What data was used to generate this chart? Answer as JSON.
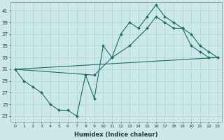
{
  "xlabel": "Humidex (Indice chaleur)",
  "background_color": "#cce8e8",
  "line_color": "#1a6b6b",
  "grid_color": "#aad0d0",
  "xlim": [
    -0.5,
    23.5
  ],
  "ylim": [
    22,
    42.5
  ],
  "xticks": [
    0,
    1,
    2,
    3,
    4,
    5,
    6,
    7,
    8,
    9,
    10,
    11,
    12,
    13,
    14,
    15,
    16,
    17,
    18,
    19,
    20,
    21,
    22,
    23
  ],
  "yticks": [
    23,
    25,
    27,
    29,
    31,
    33,
    35,
    37,
    39,
    41
  ],
  "line1_x": [
    0,
    1,
    2,
    3,
    4,
    5,
    6,
    7,
    8,
    9,
    10,
    11,
    12,
    13,
    14,
    15,
    16,
    17,
    18,
    19,
    20,
    21,
    22,
    23
  ],
  "line1_y": [
    31,
    29,
    28,
    27,
    25,
    24,
    24,
    23,
    30,
    26,
    35,
    33,
    37,
    39,
    38,
    40,
    42,
    40,
    39,
    38,
    35,
    34,
    33,
    33
  ],
  "line2_x": [
    0,
    9,
    11,
    13,
    15,
    16,
    17,
    18,
    19,
    20,
    21,
    22,
    23
  ],
  "line2_y": [
    31,
    30,
    33,
    35,
    38,
    40,
    39,
    38,
    38,
    37,
    35,
    34,
    33
  ],
  "line3_x": [
    0,
    23
  ],
  "line3_y": [
    31,
    33
  ]
}
